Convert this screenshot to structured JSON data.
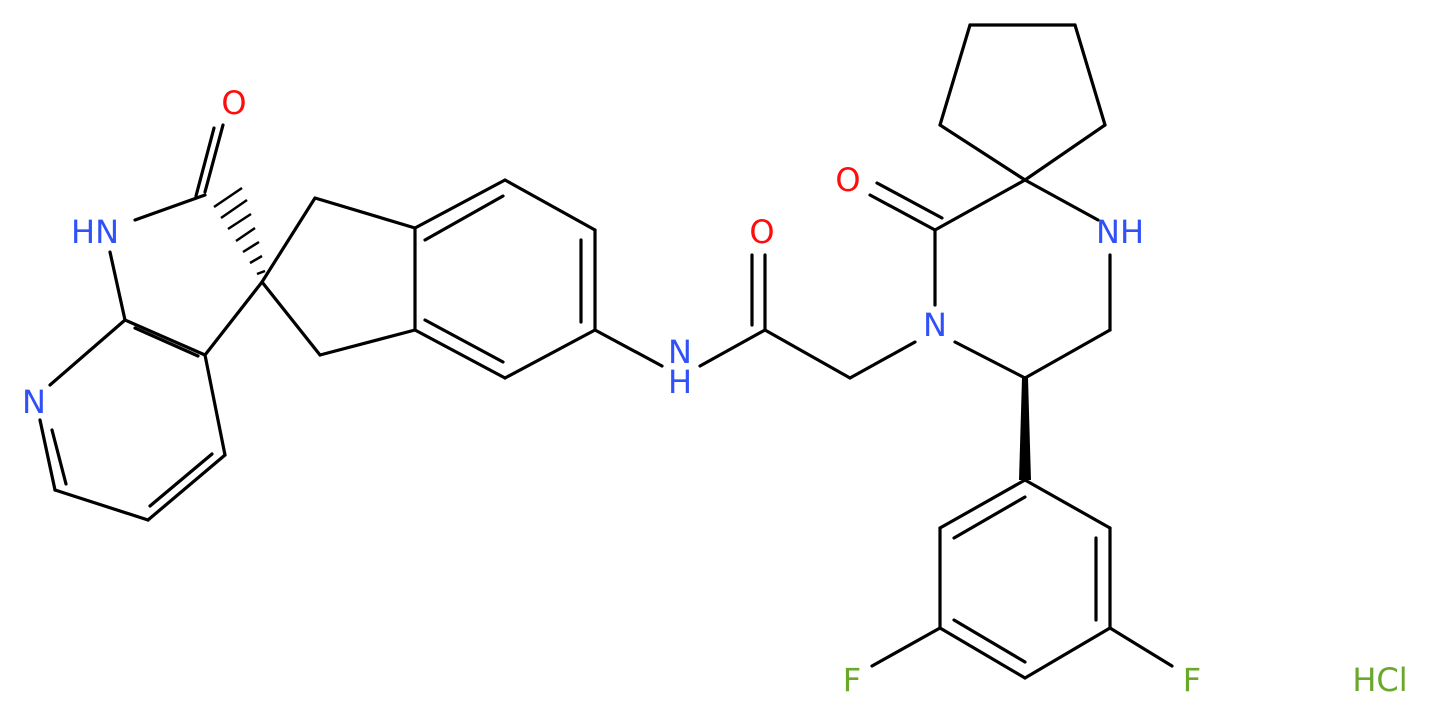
{
  "atoms": {
    "o_lactam": "O",
    "nh_lactam": "HN",
    "n_pyridine": "N",
    "o_amide": "O",
    "n_amide": "N",
    "h_amide": "H",
    "o_piperazinone": "O",
    "nh_piperazine": "NH",
    "n_piperazinone": "N",
    "f_left": "F",
    "f_right": "F"
  },
  "salt": "HCl"
}
